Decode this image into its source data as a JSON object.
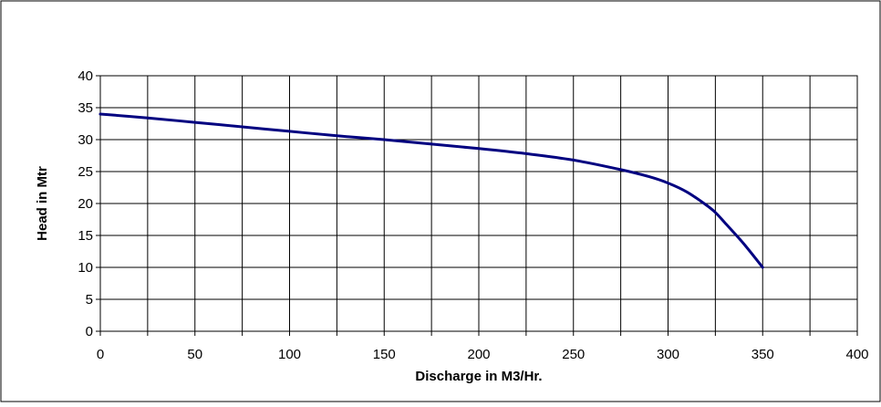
{
  "chart_data": {
    "type": "line",
    "title": "",
    "xlabel": "Discharge in M3/Hr.",
    "ylabel": "Head in Mtr",
    "xlim": [
      0,
      400
    ],
    "ylim": [
      0,
      40
    ],
    "x_ticks": [
      0,
      50,
      100,
      150,
      200,
      250,
      300,
      350,
      400
    ],
    "y_ticks": [
      0,
      5,
      10,
      15,
      20,
      25,
      30,
      35,
      40
    ],
    "x_minor_step": 25,
    "grid": true,
    "legend": "none",
    "series": [
      {
        "color": "#000080",
        "x": [
          0,
          25,
          50,
          75,
          100,
          125,
          150,
          175,
          200,
          225,
          250,
          275,
          290,
          300,
          310,
          320,
          325,
          330,
          340,
          350
        ],
        "y": [
          34,
          33.4,
          32.7,
          32,
          31.3,
          30.6,
          30,
          29.3,
          28.6,
          27.8,
          26.8,
          25.3,
          24.2,
          23.2,
          21.8,
          19.8,
          18.6,
          17,
          13.7,
          10
        ]
      }
    ]
  }
}
